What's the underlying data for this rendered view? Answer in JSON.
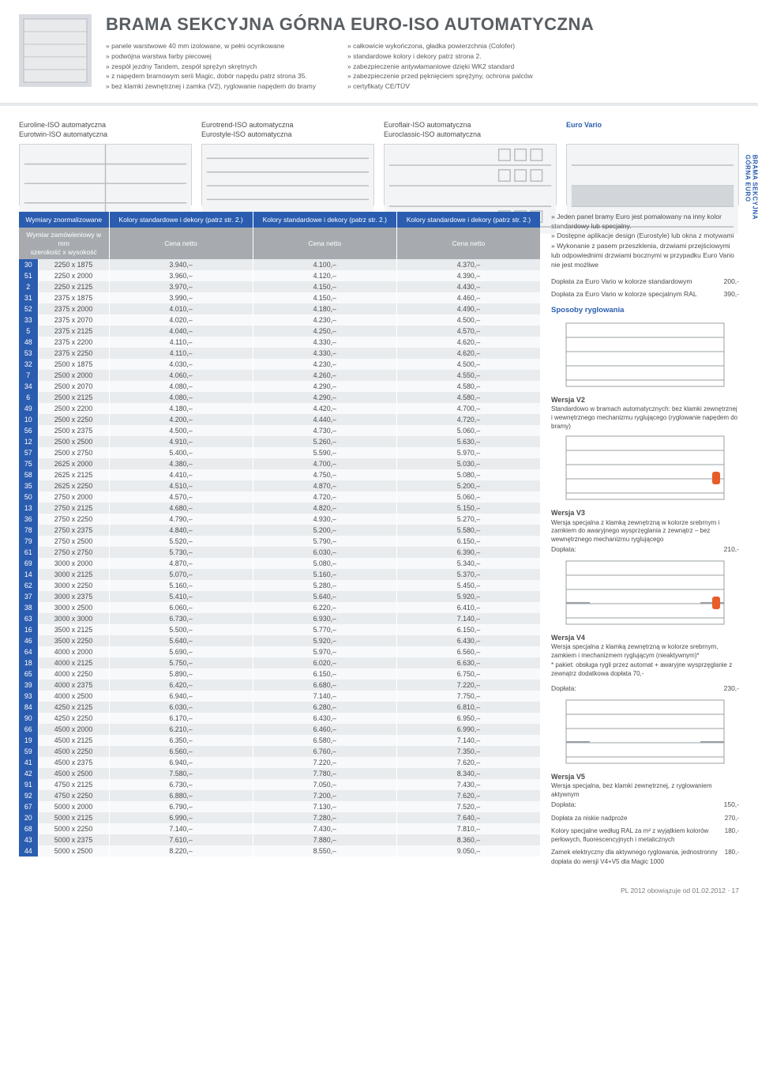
{
  "header": {
    "title": "BRAMA SEKCYJNA GÓRNA EURO-ISO AUTOMATYCZNA",
    "bullets_left": [
      "panele warstwowe 40 mm izolowane, w pełni ocynkowane",
      "podwójna warstwa farby piecowej",
      "zespół jezdny Tandem, zespół sprężyn skrętnych",
      "z napędem bramowym serii Magic, dobór napędu patrz strona 35.",
      "bez klamki zewnętrznej i zamka (V2), ryglowanie napędem do bramy"
    ],
    "bullets_right": [
      "całkowicie wykończona, gładka powierzchnia (Colofer)",
      "standardowe kolory i dekory patrz strona 2.",
      "zabezpieczenie antywłamaniowe dzięki WK2 standard",
      "zabezpieczenie przed pęknięciem sprężyny, ochrona palców",
      "certyfikaty CE/TÜV"
    ]
  },
  "models": {
    "c1a": "Euroline-ISO automatyczna",
    "c1b": "Eurotwin-ISO automatyczna",
    "c2a": "Eurotrend-ISO automatyczna",
    "c2b": "Eurostyle-ISO automatyczna",
    "c3a": "Euroflair-ISO automatyczna",
    "c3b": "Euroclassic-ISO automatyczna",
    "c4": "Euro Vario"
  },
  "side_tab": "BRAMA SEKCYJNA\nGÓRNA EURO",
  "table": {
    "head1": {
      "c1": "Wymiary znormalizowane",
      "c2": "Kolory standardowe i dekory (patrz str. 2.)",
      "c3": "Kolory standardowe i dekory (patrz str. 2.)",
      "c4": "Kolory standardowe i dekory (patrz str. 2.)"
    },
    "head2": {
      "c1a": "Wymiar zamówieniowy w mm",
      "c1b": "szerokość x wysokość",
      "c2": "Cena netto",
      "c3": "Cena netto",
      "c4": "Cena netto"
    },
    "rows": [
      [
        "30",
        "2250 x 1875",
        "3.940,–",
        "4.100,–",
        "4.370,–"
      ],
      [
        "51",
        "2250 x 2000",
        "3.960,–",
        "4.120,–",
        "4.390,–"
      ],
      [
        "2",
        "2250 x 2125",
        "3.970,–",
        "4.150,–",
        "4.430,–"
      ],
      [
        "31",
        "2375 x 1875",
        "3.990,–",
        "4.150,–",
        "4.460,–"
      ],
      [
        "52",
        "2375 x 2000",
        "4.010,–",
        "4.180,–",
        "4.490,–"
      ],
      [
        "33",
        "2375 x 2070",
        "4.020,–",
        "4.230,–",
        "4.500,–"
      ],
      [
        "5",
        "2375 x 2125",
        "4.040,–",
        "4.250,–",
        "4.570,–"
      ],
      [
        "48",
        "2375 x 2200",
        "4.110,–",
        "4.330,–",
        "4.620,–"
      ],
      [
        "53",
        "2375 x 2250",
        "4.110,–",
        "4.330,–",
        "4.620,–"
      ],
      [
        "32",
        "2500 x 1875",
        "4.030,–",
        "4.230,–",
        "4.500,–"
      ],
      [
        "7",
        "2500 x 2000",
        "4.060,–",
        "4.260,–",
        "4.550,–"
      ],
      [
        "34",
        "2500 x 2070",
        "4.080,–",
        "4.290,–",
        "4.580,–"
      ],
      [
        "6",
        "2500 x 2125",
        "4.080,–",
        "4.290,–",
        "4.580,–"
      ],
      [
        "49",
        "2500 x 2200",
        "4.180,–",
        "4.420,–",
        "4.700,–"
      ],
      [
        "10",
        "2500 x 2250",
        "4.200,–",
        "4.440,–",
        "4.720,–"
      ],
      [
        "56",
        "2500 x 2375",
        "4.500,–",
        "4.730,–",
        "5.060,–"
      ],
      [
        "12",
        "2500 x 2500",
        "4.910,–",
        "5.260,–",
        "5.630,–"
      ],
      [
        "57",
        "2500 x 2750",
        "5.400,–",
        "5.590,–",
        "5.970,–"
      ],
      [
        "75",
        "2625 x 2000",
        "4.380,–",
        "4.700,–",
        "5.030,–"
      ],
      [
        "58",
        "2625 x 2125",
        "4.410,–",
        "4.750,–",
        "5.080,–"
      ],
      [
        "35",
        "2625 x 2250",
        "4.510,–",
        "4.870,–",
        "5.200,–"
      ],
      [
        "50",
        "2750 x 2000",
        "4.570,–",
        "4.720,–",
        "5.060,–"
      ],
      [
        "13",
        "2750 x 2125",
        "4.680,–",
        "4.820,–",
        "5.150,–"
      ],
      [
        "36",
        "2750 x 2250",
        "4.790,–",
        "4.930,–",
        "5.270,–"
      ],
      [
        "78",
        "2750 x 2375",
        "4.840,–",
        "5.200,–",
        "5.580,–"
      ],
      [
        "79",
        "2750 x 2500",
        "5.520,–",
        "5.790,–",
        "6.150,–"
      ],
      [
        "61",
        "2750 x 2750",
        "5.730,–",
        "6.030,–",
        "6.390,–"
      ],
      [
        "69",
        "3000 x 2000",
        "4.870,–",
        "5.080,–",
        "5.340,–"
      ],
      [
        "14",
        "3000 x 2125",
        "5.070,–",
        "5.160,–",
        "5.370,–"
      ],
      [
        "62",
        "3000 x 2250",
        "5.160,–",
        "5.280,–",
        "5.450,–"
      ],
      [
        "37",
        "3000 x 2375",
        "5.410,–",
        "5.640,–",
        "5.920,–"
      ],
      [
        "38",
        "3000 x 2500",
        "6.060,–",
        "6.220,–",
        "6.410,–"
      ],
      [
        "63",
        "3000 x 3000",
        "6.730,–",
        "6.930,–",
        "7.140,–"
      ],
      [
        "16",
        "3500 x 2125",
        "5.500,–",
        "5.770,–",
        "6.150,–"
      ],
      [
        "46",
        "3500 x 2250",
        "5.640,–",
        "5.920,–",
        "6.430,–"
      ],
      [
        "64",
        "4000 x 2000",
        "5.690,–",
        "5.970,–",
        "6.560,–"
      ],
      [
        "18",
        "4000 x 2125",
        "5.750,–",
        "6.020,–",
        "6.630,–"
      ],
      [
        "65",
        "4000 x 2250",
        "5.890,–",
        "6.150,–",
        "6.750,–"
      ],
      [
        "39",
        "4000 x 2375",
        "6.420,–",
        "6.680,–",
        "7.220,–"
      ],
      [
        "93",
        "4000 x 2500",
        "6.940,–",
        "7.140,–",
        "7.750,–"
      ],
      [
        "84",
        "4250 x 2125",
        "6.030,–",
        "6.280,–",
        "6.810,–"
      ],
      [
        "90",
        "4250 x 2250",
        "6.170,–",
        "6.430,–",
        "6.950,–"
      ],
      [
        "66",
        "4500 x 2000",
        "6.210,–",
        "6.460,–",
        "6.990,–"
      ],
      [
        "19",
        "4500 x 2125",
        "6.350,–",
        "6.580,–",
        "7.140,–"
      ],
      [
        "59",
        "4500 x 2250",
        "6.560,–",
        "6.760,–",
        "7.350,–"
      ],
      [
        "41",
        "4500 x 2375",
        "6.940,–",
        "7.220,–",
        "7.620,–"
      ],
      [
        "42",
        "4500 x 2500",
        "7.580,–",
        "7.780,–",
        "8.340,–"
      ],
      [
        "91",
        "4750 x 2125",
        "6.730,–",
        "7.050,–",
        "7.430,–"
      ],
      [
        "92",
        "4750 x 2250",
        "6.880,–",
        "7.200,–",
        "7.620,–"
      ],
      [
        "67",
        "5000 x 2000",
        "6.790,–",
        "7.130,–",
        "7.520,–"
      ],
      [
        "20",
        "5000 x 2125",
        "6.990,–",
        "7.280,–",
        "7.640,–"
      ],
      [
        "68",
        "5000 x 2250",
        "7.140,–",
        "7.430,–",
        "7.810,–"
      ],
      [
        "43",
        "5000 x 2375",
        "7.610,–",
        "7.880,–",
        "8.360,–"
      ],
      [
        "44",
        "5000 x 2500",
        "8.220,–",
        "8.550,–",
        "9.050,–"
      ]
    ]
  },
  "right": {
    "bullets": [
      "Jeden panel bramy Euro jest pomalowany na inny kolor standardowy lub specjalny.",
      "Dostępne aplikacje design (Eurostyle) lub okna z motywami",
      "Wykonanie z pasem przeszklenia, drzwiami przejściowymi lub odpowiednimi drzwiami bocznymi w przypadku Euro Vario nie jest możliwe"
    ],
    "doplata1_lab": "Dopłata za Euro Vario w kolorze standardowym",
    "doplata1_val": "200,-",
    "doplata2_lab": "Dopłata za Euro Vario w kolorze specjalnym RAL",
    "doplata2_val": "390,-",
    "sposoby": "Sposoby ryglowania",
    "v2_t": "Wersja V2",
    "v2_d": "Standardowo w bramach automatycznych: bez klamki zewnętrznej i wewnętrznego mechanizmu ryglującego (ryglowanie napędem do bramy)",
    "v3_t": "Wersja V3",
    "v3_d": "Wersja specjalna z klamką zewnętrzną w kolorze srebrnym i zamkiem do awaryjnego wysprzęglania z zewnątrz – bez wewnętrznego mechanizmu ryglującego",
    "v3_dop_lab": "Dopłata:",
    "v3_dop_val": "210,-",
    "v4_t": "Wersja V4",
    "v4_d": "Wersja specjalna z klamką zewnętrzną w kolorze srebrnym, zamkiem i mechanizmem ryglującym (nieaktywnym)*",
    "v4_note": "* pakiet: obsługa rygli przez automat + awaryjne wysprzęglanie z zewnątrz dodatkowa dopłata 70,-",
    "v4_dop_lab": "Dopłata:",
    "v4_dop_val": "230,-",
    "v5_t": "Wersja V5",
    "v5_d": "Wersja specjalna, bez klamki zewnętrznej, z ryglowaniem aktywnym",
    "v5_dop_lab": "Dopłata:",
    "v5_dop_val": "150,-",
    "niskie_lab": "Dopłata za niskie nadproże",
    "niskie_val": "270,-",
    "kolory_lab": "Kolory specjalne według RAL za m² z wyjątkiem kolorów perłowych, fluorescencyjnych i metalicznych",
    "kolory_val": "180,-",
    "zamek_lab": "Zamek elektryczny dla aktywnego ryglowania, jednostronny dopłata do wersji V4+V5 dla Magic 1000",
    "zamek_val": "180,-"
  },
  "footer": "PL 2012 obowiązuje od 01.02.2012 · 17"
}
